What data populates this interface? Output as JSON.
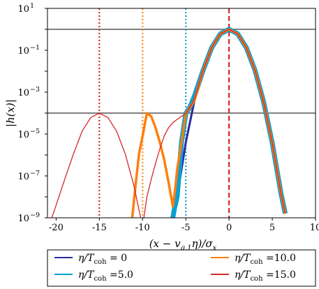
{
  "chart_data": {
    "type": "line",
    "title": "",
    "xlabel": "(x − v_{g,1}η)/σ_x",
    "ylabel": "|h(x)|",
    "xlim": [
      -21,
      10
    ],
    "ylim_log10": [
      -9,
      1
    ],
    "yscale": "log",
    "grid": false,
    "legend_position": "bottom, below plot, 2 columns",
    "x_ticks": [
      -20,
      -15,
      -10,
      -5,
      0,
      5,
      10
    ],
    "x_tick_labels": [
      "-20",
      "-15",
      "-10",
      "-5",
      "0",
      "5",
      "10"
    ],
    "y_ticks_exp": [
      -9,
      -7,
      -5,
      -3,
      -1,
      1
    ],
    "y_tick_base": "10",
    "y_tick_exp_labels": [
      "−9",
      "−7",
      "−5",
      "−3",
      "−1",
      "1"
    ],
    "horizontal_lines": [
      {
        "y": 1.0,
        "color": "#808080"
      },
      {
        "y": 0.0001,
        "color": "#808080"
      }
    ],
    "vertical_lines": [
      {
        "x": 0,
        "style": "dashed",
        "color": "#d62728"
      },
      {
        "x": -5,
        "style": "dotted",
        "color": "#17a2c8"
      },
      {
        "x": -10,
        "style": "dotted",
        "color": "#ff8c1a"
      },
      {
        "x": -15,
        "style": "dotted",
        "color": "#d62728"
      }
    ],
    "series": [
      {
        "name": "η/T_coh = 0",
        "color": "#2b2b9e",
        "width": 3,
        "x": [
          -6.5,
          -6.0,
          -5.0,
          -4.0,
          -3.0,
          -2.0,
          -1.0,
          0.0,
          1.0,
          2.0,
          3.0,
          4.0,
          5.0,
          6.0,
          6.5
        ],
        "y": [
          1.6e-09,
          1e-08,
          4e-06,
          0.0004,
          0.011,
          0.135,
          0.61,
          1.0,
          0.61,
          0.135,
          0.011,
          0.00034,
          3.7e-06,
          1.5e-08,
          1.6e-09
        ]
      },
      {
        "name": "η/T_coh =5.0",
        "color": "#0aa0d4",
        "width": 7,
        "x": [
          -6.5,
          -6.3,
          -6.0,
          -5.5,
          -5.0,
          -4.5,
          -4.0,
          -3.0,
          -2.0,
          -1.0,
          0.0,
          1.0,
          2.0,
          3.0,
          4.0,
          5.0,
          6.0,
          6.5
        ],
        "y": [
          1e-09,
          3e-09,
          1e-08,
          4e-06,
          9.5e-05,
          0.0002,
          0.00065,
          0.011,
          0.135,
          0.61,
          1.0,
          0.61,
          0.135,
          0.011,
          0.00034,
          3.7e-06,
          1.5e-08,
          1.6e-09
        ]
      },
      {
        "name": "η/T_coh =10.0",
        "color": "#ff7f0e",
        "width": 3.5,
        "x": [
          -11.2,
          -10.8,
          -10.4,
          -10.0,
          -9.5,
          -9.0,
          -8.5,
          -8.0,
          -7.5,
          -7.0,
          -6.5,
          -6.2,
          -6.0,
          -5.5,
          -5.0,
          -4.0,
          -3.0,
          -2.0,
          -1.0,
          0.0,
          1.0,
          2.0,
          3.0,
          4.0,
          5.0,
          6.0,
          6.5
        ],
        "y": [
          1e-09,
          4e-08,
          1.2e-06,
          8e-06,
          0.0001,
          7e-05,
          2e-05,
          4e-06,
          6e-07,
          5e-08,
          3.5e-09,
          3e-08,
          2e-07,
          4e-06,
          9.5e-05,
          0.0004,
          0.011,
          0.135,
          0.61,
          1.0,
          0.61,
          0.135,
          0.011,
          0.00034,
          3.7e-06,
          1.5e-08,
          1.6e-09
        ]
      },
      {
        "name": "η/T_coh =15.0",
        "color": "#d62728",
        "width": 1.3,
        "x": [
          -20.5,
          -20.0,
          -19.0,
          -18.0,
          -17.0,
          -16.0,
          -15.0,
          -14.0,
          -13.0,
          -12.0,
          -11.0,
          -10.0,
          -9.5,
          -9.0,
          -8.5,
          -8.0,
          -7.5,
          -7.0,
          -6.5,
          -6.0,
          -5.5,
          -5.0,
          -4.5,
          -4.0,
          -3.0,
          -2.0,
          -1.0,
          0.0,
          1.0,
          2.0,
          3.0,
          4.0,
          5.0,
          6.0,
          6.5
        ],
        "y": [
          1e-09,
          4e-09,
          7e-08,
          1.1e-06,
          1.35e-05,
          6.1e-05,
          0.0001,
          6.1e-05,
          1.35e-05,
          1.1e-06,
          3.4e-08,
          3.7e-10,
          1e-08,
          7e-08,
          4e-07,
          2e-06,
          8e-06,
          2e-05,
          3.5e-05,
          5e-05,
          7e-05,
          9.5e-05,
          0.0002,
          0.00045,
          0.011,
          0.135,
          0.61,
          1.0,
          0.61,
          0.135,
          0.011,
          0.00034,
          3.7e-06,
          1.5e-08,
          1.6e-09
        ]
      }
    ],
    "legend": {
      "columns": [
        [
          "η/T_coh = 0",
          "η/T_coh =5.0"
        ],
        [
          "η/T_coh =10.0",
          "η/T_coh =15.0"
        ]
      ]
    }
  }
}
